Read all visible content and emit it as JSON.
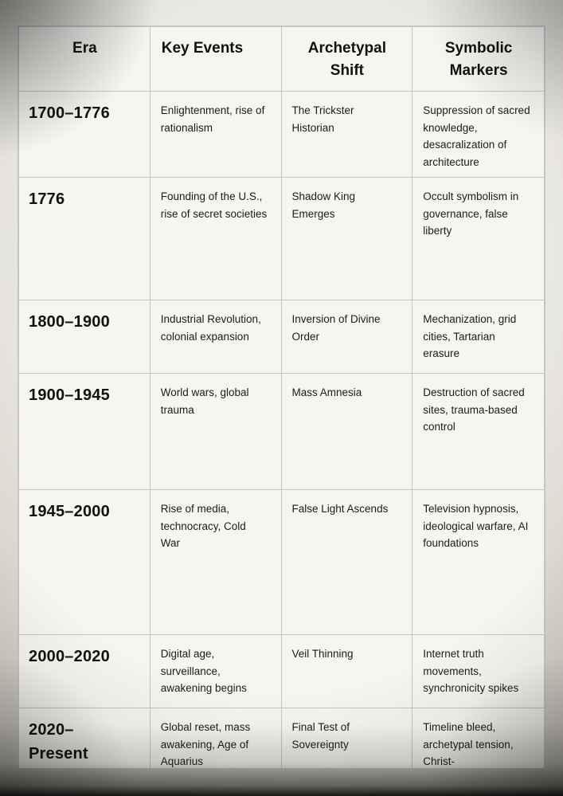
{
  "table": {
    "columns": [
      {
        "label": "Era"
      },
      {
        "label": "Key Events"
      },
      {
        "label": "Archetypal Shift"
      },
      {
        "label": "Symbolic Markers"
      }
    ],
    "rows": [
      {
        "era": "1700–1776",
        "key_events": "Enlightenment, rise of rationalism",
        "archetypal_shift": "The Trickster Historian",
        "symbolic_markers": "Suppression of sacred knowledge, desacralization of architecture"
      },
      {
        "era": "1776",
        "key_events": "Founding of the U.S., rise of secret societies",
        "archetypal_shift": "Shadow King Emerges",
        "symbolic_markers": "Occult symbolism in governance, false liberty"
      },
      {
        "era": "1800–1900",
        "key_events": "Industrial Revolution, colonial expansion",
        "archetypal_shift": "Inversion of Divine Order",
        "symbolic_markers": "Mechanization, grid cities, Tartarian erasure"
      },
      {
        "era": "1900–1945",
        "key_events": "World wars, global trauma",
        "archetypal_shift": "Mass Amnesia",
        "symbolic_markers": "Destruction of sacred sites, trauma-based control"
      },
      {
        "era": "1945–2000",
        "key_events": "Rise of media, technocracy, Cold War",
        "archetypal_shift": "False Light Ascends",
        "symbolic_markers": "Television hypnosis, ideological warfare, AI foundations"
      },
      {
        "era": "2000–2020",
        "key_events": "Digital age, surveillance, awakening begins",
        "archetypal_shift": "Veil Thinning",
        "symbolic_markers": "Internet truth movements, synchronicity spikes"
      },
      {
        "era": "2020–Present",
        "key_events": "Global reset, mass awakening, Age of Aquarius",
        "archetypal_shift": "Final Test of Sovereignty",
        "symbolic_markers": "Timeline bleed, archetypal tension, Christ-"
      }
    ]
  },
  "colors": {
    "cell_background": "#f6f5f0",
    "table_border": "#c6c3ce",
    "text": "#1c1c1c",
    "vignette_dark": "#0a0a08"
  }
}
